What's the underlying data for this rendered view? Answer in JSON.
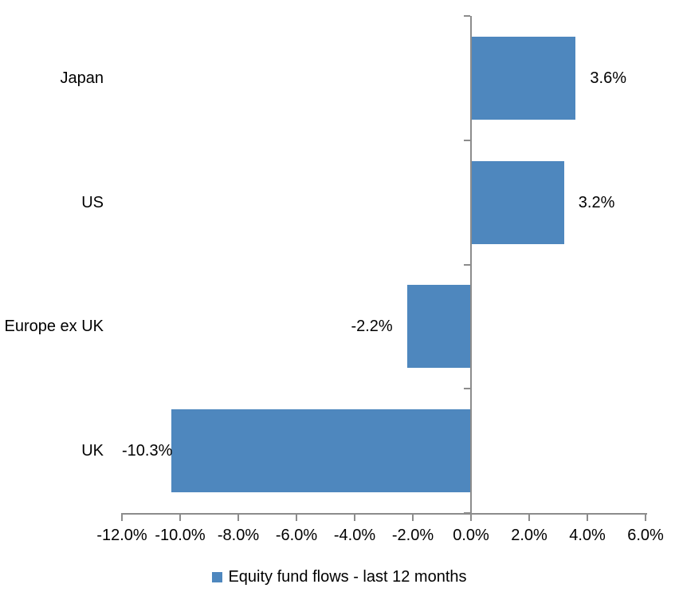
{
  "chart_data": {
    "type": "bar",
    "orientation": "horizontal",
    "title": "",
    "categories": [
      "Japan",
      "US",
      "Europe ex UK",
      "UK"
    ],
    "series": [
      {
        "name": "Equity fund flows - last 12 months",
        "values": [
          3.6,
          3.2,
          -2.2,
          -10.3
        ],
        "data_labels": [
          "3.6%",
          "3.2%",
          "-2.2%",
          "-10.3%"
        ]
      }
    ],
    "xlim": [
      -12,
      6
    ],
    "x_tick_values": [
      -12,
      -10,
      -8,
      -6,
      -4,
      -2,
      0,
      2,
      4,
      6
    ],
    "x_tick_labels": [
      "-12.0%",
      "-10.0%",
      "-8.0%",
      "-6.0%",
      "-4.0%",
      "-2.0%",
      "0.0%",
      "2.0%",
      "4.0%",
      "6.0%"
    ],
    "grid": false,
    "legend_position": "bottom",
    "colors": {
      "bar": "#4E87BE",
      "axis": "#8C8C8C",
      "text": "#000000",
      "background": "#FFFFFF"
    }
  },
  "legend": {
    "label": "Equity fund flows - last 12 months"
  }
}
